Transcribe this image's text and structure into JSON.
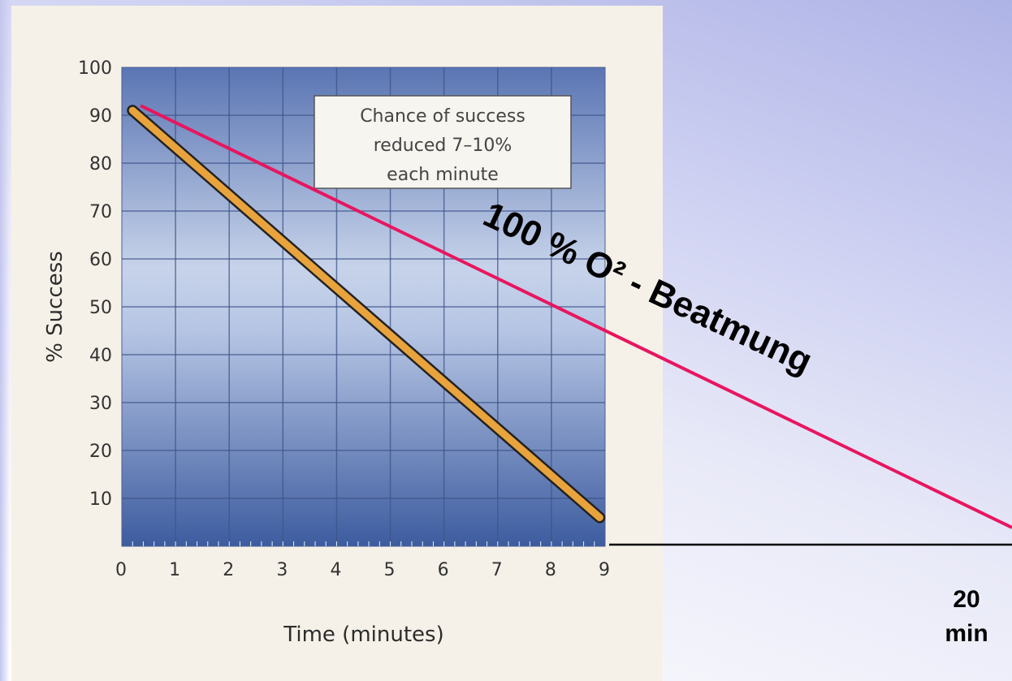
{
  "chart_data": {
    "type": "line",
    "xlabel": "Time (minutes)",
    "ylabel": "% Success",
    "xlim": [
      0,
      9
    ],
    "ylim": [
      0,
      100
    ],
    "x_ticks": [
      0,
      1,
      2,
      3,
      4,
      5,
      6,
      7,
      8,
      9
    ],
    "y_ticks": [
      10,
      20,
      30,
      40,
      50,
      60,
      70,
      80,
      90,
      100
    ],
    "grid": true,
    "series": [
      {
        "x": [
          0.2,
          8.9
        ],
        "y": [
          91,
          6
        ],
        "color": "#e8a33c",
        "edge_color": "#222222"
      }
    ],
    "annotation": {
      "lines": [
        "Chance of success",
        "reduced 7–10%",
        "each minute"
      ],
      "position": "top-right"
    },
    "colors": {
      "plot_top": "#5a75b3",
      "plot_mid": "#c7d3ea",
      "plot_bottom": "#3d5c9f",
      "card": "#f6f1e8"
    }
  },
  "overlay": {
    "label": "100 % O² - Beatmung",
    "line_color": "#e8165f",
    "extended_axis_end_label": [
      "20",
      "min"
    ],
    "start": {
      "x": 0.35,
      "y": 92
    },
    "end_minutes": 20
  }
}
